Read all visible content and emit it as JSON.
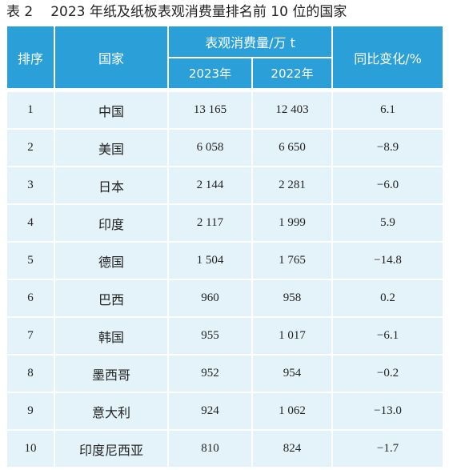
{
  "caption": {
    "number": "表 2",
    "title": "2023 年纸及纸板表观消费量排名前 10 位的国家"
  },
  "header": {
    "rank": "排序",
    "country": "国家",
    "consumption_group": "表观消费量/万 t",
    "year_2023": "2023年",
    "year_2022": "2022年",
    "yoy": "同比变化/%"
  },
  "rows": [
    {
      "rank": "1",
      "country": "中国",
      "v2023": "13 165",
      "v2022": "12 403",
      "yoy": "6.1"
    },
    {
      "rank": "2",
      "country": "美国",
      "v2023": "6 058",
      "v2022": "6 650",
      "yoy": "−8.9"
    },
    {
      "rank": "3",
      "country": "日本",
      "v2023": "2 144",
      "v2022": "2 281",
      "yoy": "−6.0"
    },
    {
      "rank": "4",
      "country": "印度",
      "v2023": "2 117",
      "v2022": "1 999",
      "yoy": "5.9"
    },
    {
      "rank": "5",
      "country": "德国",
      "v2023": "1 504",
      "v2022": "1 765",
      "yoy": "−14.8"
    },
    {
      "rank": "6",
      "country": "巴西",
      "v2023": "960",
      "v2022": "958",
      "yoy": "0.2"
    },
    {
      "rank": "7",
      "country": "韩国",
      "v2023": "955",
      "v2022": "1 017",
      "yoy": "−6.1"
    },
    {
      "rank": "8",
      "country": "墨西哥",
      "v2023": "952",
      "v2022": "954",
      "yoy": "−0.2"
    },
    {
      "rank": "9",
      "country": "意大利",
      "v2023": "924",
      "v2022": "1 062",
      "yoy": "−13.0"
    },
    {
      "rank": "10",
      "country": "印度尼西亚",
      "v2023": "810",
      "v2022": "824",
      "yoy": "−1.7"
    }
  ],
  "colors": {
    "header_bg": "#2a9fd8",
    "row_bg": "#e4f3f9"
  }
}
